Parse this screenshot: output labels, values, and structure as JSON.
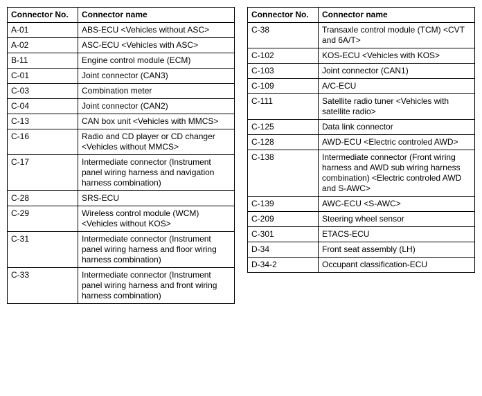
{
  "headers": {
    "no": "Connector No.",
    "name": "Connector name"
  },
  "left": [
    {
      "no": "A-01",
      "name": "ABS-ECU <Vehicles without ASC>"
    },
    {
      "no": "A-02",
      "name": "ASC-ECU <Vehicles with ASC>"
    },
    {
      "no": "B-11",
      "name": "Engine control module (ECM)"
    },
    {
      "no": "C-01",
      "name": "Joint connector (CAN3)"
    },
    {
      "no": "C-03",
      "name": "Combination meter"
    },
    {
      "no": "C-04",
      "name": "Joint connector (CAN2)"
    },
    {
      "no": "C-13",
      "name": "CAN box unit <Vehicles with MMCS>"
    },
    {
      "no": "C-16",
      "name": "Radio and CD player or CD changer <Vehicles without MMCS>"
    },
    {
      "no": "C-17",
      "name": "Intermediate connector (Instrument panel wiring harness and navigation harness combination)"
    },
    {
      "no": "C-28",
      "name": "SRS-ECU"
    },
    {
      "no": "C-29",
      "name": "Wireless control module (WCM) <Vehicles without KOS>"
    },
    {
      "no": "C-31",
      "name": "Intermediate connector (Instrument panel wiring harness and floor wiring harness combination)"
    },
    {
      "no": "C-33",
      "name": "Intermediate connector (Instrument panel wiring harness and front wiring harness combination)"
    }
  ],
  "right": [
    {
      "no": "C-38",
      "name": "Transaxle control module (TCM) <CVT and 6A/T>"
    },
    {
      "no": "C-102",
      "name": "KOS-ECU <Vehicles with KOS>"
    },
    {
      "no": "C-103",
      "name": "Joint connector (CAN1)"
    },
    {
      "no": "C-109",
      "name": "A/C-ECU"
    },
    {
      "no": "C-111",
      "name": "Satellite radio tuner <Vehicles with satellite radio>"
    },
    {
      "no": "C-125",
      "name": "Data link connector"
    },
    {
      "no": "C-128",
      "name": "AWD-ECU <Electric controled AWD>"
    },
    {
      "no": "C-138",
      "name": "Intermediate connector (Front wiring harness and AWD sub wiring harness combination) <Electric controled AWD and S-AWC>"
    },
    {
      "no": "C-139",
      "name": "AWC-ECU <S-AWC>"
    },
    {
      "no": "C-209",
      "name": "Steering wheel sensor"
    },
    {
      "no": "C-301",
      "name": "ETACS-ECU"
    },
    {
      "no": "D-34",
      "name": "Front seat assembly (LH)"
    },
    {
      "no": "D-34-2",
      "name": "Occupant classification-ECU"
    }
  ]
}
